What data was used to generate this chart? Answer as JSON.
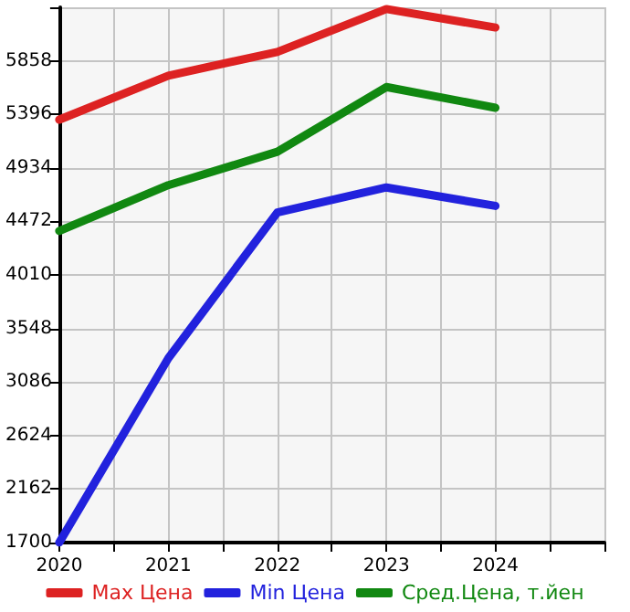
{
  "chart_data": {
    "type": "line",
    "x": [
      2020,
      2021,
      2022,
      2023,
      2024
    ],
    "xlim": [
      2020,
      2025
    ],
    "xticks": [
      2020,
      {
        "value": 2020.5,
        "label": null
      },
      2021,
      {
        "value": 2021.5,
        "label": null
      },
      2022,
      {
        "value": 2022.5,
        "label": null
      },
      2023,
      {
        "value": 2023.5,
        "label": null
      },
      2024,
      {
        "value": 2024.5,
        "label": null
      },
      {
        "value": 2025,
        "label": null
      }
    ],
    "ylim": [
      1700,
      6320
    ],
    "yticks": [
      1700,
      2162,
      2624,
      3086,
      3548,
      4010,
      4472,
      4934,
      5396,
      5858,
      {
        "value": 6320,
        "label": null
      }
    ],
    "series": [
      {
        "name": "Max Цена",
        "color": "#dd2222",
        "values": [
          5350,
          5730,
          5935,
          6305,
          6146
        ]
      },
      {
        "name": "Min Цена",
        "color": "#2222dd",
        "values": [
          1700,
          3291,
          4549,
          4765,
          4606
        ]
      },
      {
        "name": "Сред.Цена, т.йен",
        "color": "#118811",
        "values": [
          4390,
          4785,
          5073,
          5632,
          5453
        ]
      }
    ],
    "grid": true,
    "legend": "bottom",
    "marker": "none",
    "line_style": "solid"
  }
}
